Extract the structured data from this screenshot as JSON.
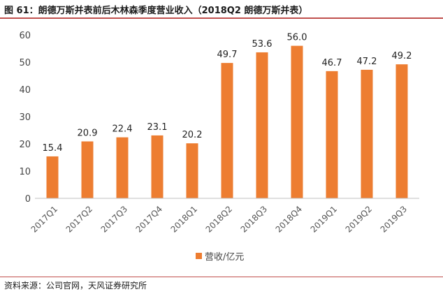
{
  "title": "图 61：朗德万斯并表前后木林森季度营业收入（2018Q2 朗德万斯并表）",
  "source": "资料来源：公司官网，天风证券研究所",
  "chart_data": {
    "type": "bar",
    "categories": [
      "2017Q1",
      "2017Q2",
      "2017Q3",
      "2017Q4",
      "2018Q1",
      "2018Q2",
      "2018Q3",
      "2018Q4",
      "2019Q1",
      "2019Q2",
      "2019Q3"
    ],
    "series": [
      {
        "name": "营收/亿元",
        "values": [
          15.4,
          20.9,
          22.4,
          23.1,
          20.2,
          49.7,
          53.6,
          56.0,
          46.7,
          47.2,
          49.2
        ]
      }
    ],
    "data_labels": [
      "15.4",
      "20.9",
      "22.4",
      "23.1",
      "20.2",
      "49.7",
      "53.6",
      "56.0",
      "46.7",
      "47.2",
      "49.2"
    ],
    "yticks": [
      "0",
      "10",
      "20",
      "30",
      "40",
      "50",
      "60"
    ],
    "ylim": [
      0,
      60
    ],
    "grid": false,
    "legend": "bottom-center",
    "color": "#ed7d31"
  }
}
